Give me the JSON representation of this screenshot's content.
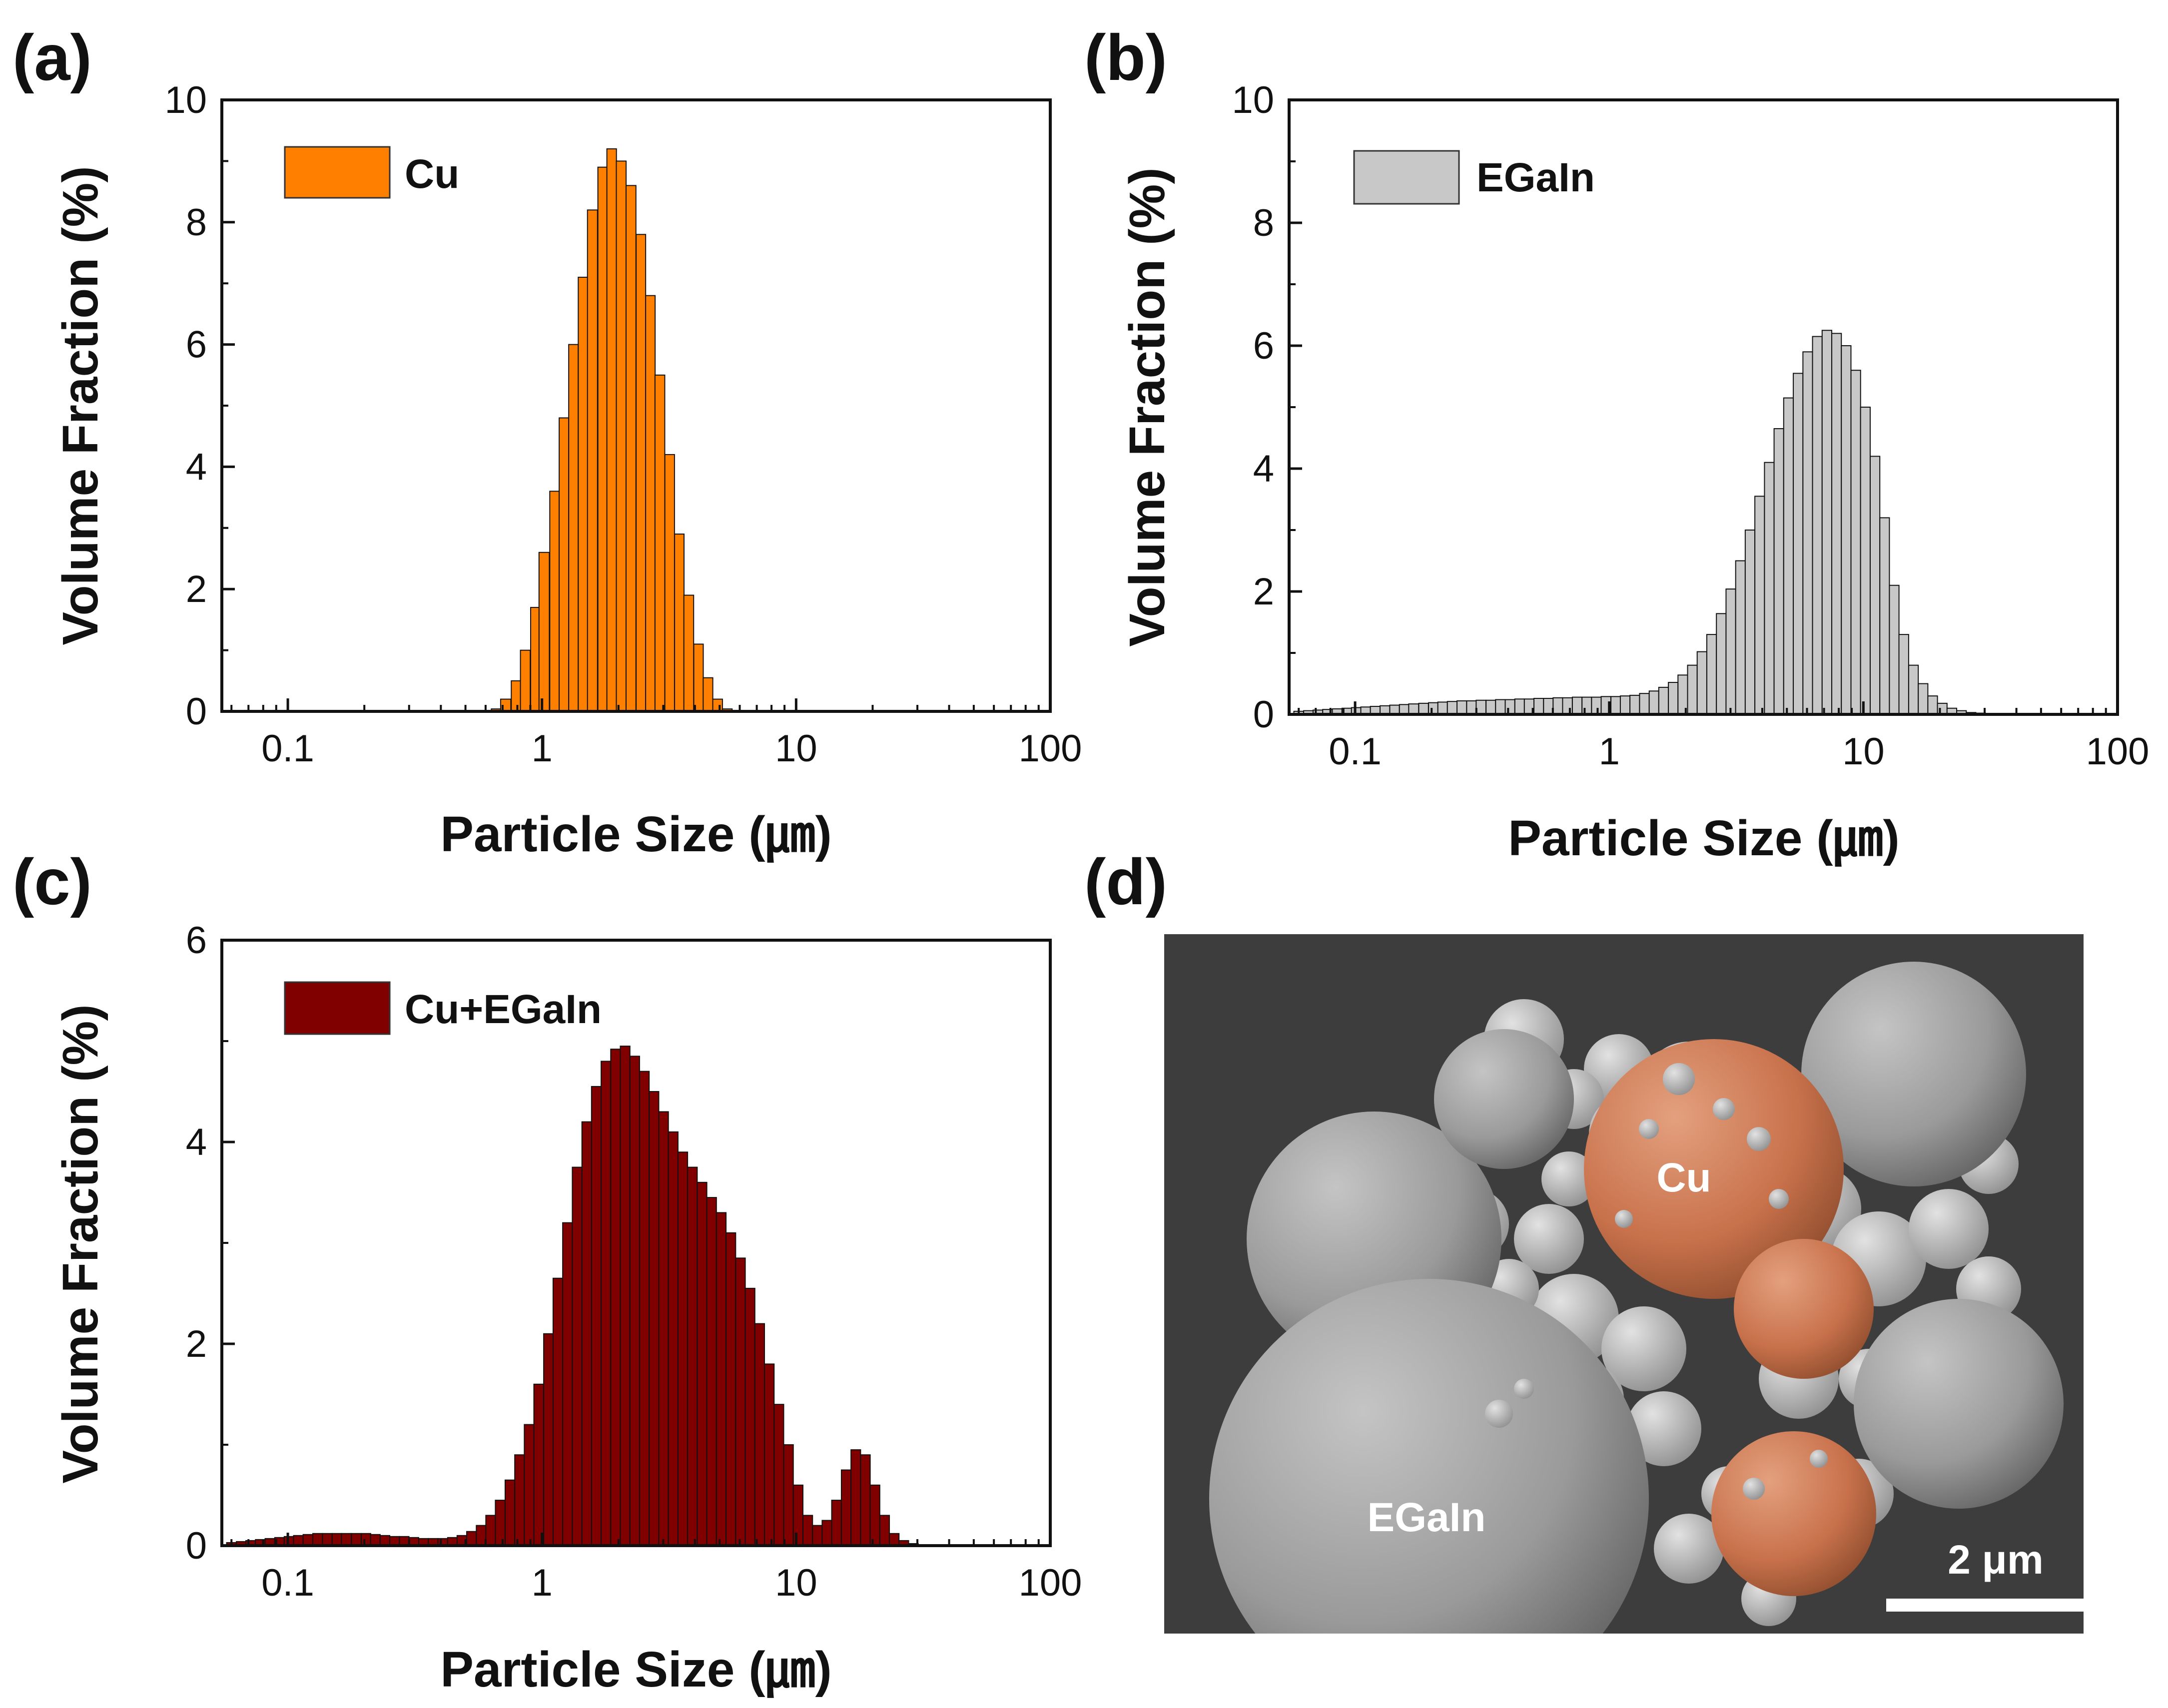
{
  "figure": {
    "background": "#ffffff",
    "x_scale": "log"
  },
  "chart_data": [
    {
      "id": "a",
      "panel_label": "(a)",
      "type": "bar",
      "legend": "Cu",
      "color": "#ff8000",
      "xlabel": "Particle Size (㎛)",
      "ylabel": "Volume Fraction (%)",
      "xlim": [
        0.055,
        100
      ],
      "ylim": [
        0,
        10
      ],
      "xticks": [
        {
          "v": 0.1,
          "t": "0.1"
        },
        {
          "v": 1,
          "t": "1"
        },
        {
          "v": 10,
          "t": "10"
        },
        {
          "v": 100,
          "t": "100"
        }
      ],
      "yticks": [
        {
          "v": 0,
          "t": "0"
        },
        {
          "v": 2,
          "t": "2"
        },
        {
          "v": 4,
          "t": "4"
        },
        {
          "v": 6,
          "t": "6"
        },
        {
          "v": 8,
          "t": "8"
        },
        {
          "v": 10,
          "t": "10"
        }
      ],
      "legend_position": "top-left",
      "x": [
        0.66,
        0.72,
        0.79,
        0.86,
        0.94,
        1.02,
        1.12,
        1.22,
        1.33,
        1.45,
        1.58,
        1.73,
        1.88,
        2.05,
        2.24,
        2.45,
        2.67,
        2.91,
        3.18,
        3.47,
        3.78,
        4.13,
        4.5,
        4.91,
        5.36
      ],
      "values": [
        0.04,
        0.2,
        0.5,
        1.0,
        1.7,
        2.6,
        3.6,
        4.8,
        6.0,
        7.1,
        8.2,
        8.9,
        9.2,
        9.0,
        8.6,
        7.8,
        6.8,
        5.5,
        4.2,
        2.9,
        1.9,
        1.1,
        0.55,
        0.2,
        0.04
      ]
    },
    {
      "id": "b",
      "panel_label": "(b)",
      "type": "bar",
      "legend": "EGaIn",
      "color": "#c8c8c8",
      "xlabel": "Particle Size (㎛)",
      "ylabel": "Volume Fraction (%)",
      "xlim": [
        0.055,
        100
      ],
      "ylim": [
        0,
        10
      ],
      "xticks": [
        {
          "v": 0.1,
          "t": "0.1"
        },
        {
          "v": 1,
          "t": "1"
        },
        {
          "v": 10,
          "t": "10"
        },
        {
          "v": 100,
          "t": "100"
        }
      ],
      "yticks": [
        {
          "v": 0,
          "t": "0"
        },
        {
          "v": 2,
          "t": "2"
        },
        {
          "v": 4,
          "t": "4"
        },
        {
          "v": 6,
          "t": "6"
        },
        {
          "v": 8,
          "t": "8"
        },
        {
          "v": 10,
          "t": "10"
        }
      ],
      "legend_position": "top-left",
      "x": [
        0.06,
        0.0655,
        0.0714,
        0.0779,
        0.085,
        0.0927,
        0.101,
        0.11,
        0.12,
        0.131,
        0.143,
        0.156,
        0.17,
        0.186,
        0.203,
        0.221,
        0.241,
        0.263,
        0.287,
        0.313,
        0.342,
        0.373,
        0.407,
        0.444,
        0.484,
        0.528,
        0.576,
        0.628,
        0.685,
        0.748,
        0.816,
        0.89,
        0.971,
        1.06,
        1.155,
        1.26,
        1.375,
        1.5,
        1.636,
        1.785,
        1.947,
        2.124,
        2.317,
        2.528,
        2.758,
        3.009,
        3.283,
        3.581,
        3.907,
        4.263,
        4.65,
        5.073,
        5.535,
        6.039,
        6.588,
        7.187,
        7.841,
        8.554,
        9.333,
        10.18,
        11.11,
        12.12,
        13.22,
        14.42,
        15.74,
        17.17,
        18.73,
        20.43,
        22.29,
        24.32,
        26.53,
        28.94,
        31.58
      ],
      "values": [
        0.05,
        0.06,
        0.07,
        0.08,
        0.09,
        0.1,
        0.11,
        0.12,
        0.13,
        0.14,
        0.15,
        0.16,
        0.17,
        0.18,
        0.19,
        0.2,
        0.21,
        0.22,
        0.22,
        0.23,
        0.23,
        0.24,
        0.24,
        0.25,
        0.25,
        0.26,
        0.26,
        0.27,
        0.27,
        0.28,
        0.28,
        0.28,
        0.29,
        0.29,
        0.3,
        0.31,
        0.34,
        0.38,
        0.44,
        0.52,
        0.64,
        0.8,
        1.02,
        1.3,
        1.64,
        2.04,
        2.5,
        3.0,
        3.55,
        4.1,
        4.65,
        5.15,
        5.55,
        5.9,
        6.15,
        6.25,
        6.2,
        6.0,
        5.6,
        5.0,
        4.2,
        3.2,
        2.1,
        1.3,
        0.8,
        0.5,
        0.3,
        0.18,
        0.1,
        0.06,
        0.03,
        0.02,
        0.01
      ]
    },
    {
      "id": "c",
      "panel_label": "(c)",
      "type": "bar",
      "legend": "Cu+EGaIn",
      "color": "#800000",
      "xlabel": "Particle Size (㎛)",
      "ylabel": "Volume Fraction (%)",
      "xlim": [
        0.055,
        100
      ],
      "ylim": [
        0,
        6
      ],
      "xticks": [
        {
          "v": 0.1,
          "t": "0.1"
        },
        {
          "v": 1,
          "t": "1"
        },
        {
          "v": 10,
          "t": "10"
        },
        {
          "v": 100,
          "t": "100"
        }
      ],
      "yticks": [
        {
          "v": 0,
          "t": "0"
        },
        {
          "v": 2,
          "t": "2"
        },
        {
          "v": 4,
          "t": "4"
        },
        {
          "v": 6,
          "t": "6"
        }
      ],
      "legend_position": "top-left",
      "x": [
        0.06,
        0.0655,
        0.0714,
        0.0779,
        0.085,
        0.0927,
        0.101,
        0.11,
        0.12,
        0.131,
        0.143,
        0.156,
        0.17,
        0.186,
        0.203,
        0.221,
        0.241,
        0.263,
        0.287,
        0.313,
        0.342,
        0.373,
        0.407,
        0.444,
        0.484,
        0.528,
        0.576,
        0.628,
        0.685,
        0.748,
        0.816,
        0.89,
        0.971,
        1.06,
        1.155,
        1.26,
        1.375,
        1.5,
        1.636,
        1.785,
        1.947,
        2.124,
        2.317,
        2.528,
        2.758,
        3.009,
        3.283,
        3.581,
        3.907,
        4.263,
        4.65,
        5.073,
        5.535,
        6.039,
        6.588,
        7.187,
        7.841,
        8.554,
        9.333,
        10.18,
        11.11,
        12.12,
        13.22,
        14.42,
        15.74,
        17.17,
        18.73,
        20.43,
        22.29,
        24.32,
        26.53,
        28.94
      ],
      "values": [
        0.03,
        0.04,
        0.05,
        0.06,
        0.07,
        0.08,
        0.09,
        0.1,
        0.11,
        0.12,
        0.12,
        0.12,
        0.12,
        0.12,
        0.12,
        0.11,
        0.1,
        0.09,
        0.09,
        0.08,
        0.07,
        0.07,
        0.07,
        0.08,
        0.1,
        0.14,
        0.2,
        0.3,
        0.45,
        0.65,
        0.9,
        1.2,
        1.6,
        2.1,
        2.65,
        3.2,
        3.75,
        4.2,
        4.55,
        4.8,
        4.92,
        4.95,
        4.85,
        4.7,
        4.5,
        4.3,
        4.1,
        3.9,
        3.75,
        3.6,
        3.45,
        3.3,
        3.1,
        2.85,
        2.55,
        2.2,
        1.8,
        1.4,
        1.0,
        0.6,
        0.3,
        0.2,
        0.25,
        0.45,
        0.75,
        0.95,
        0.9,
        0.6,
        0.3,
        0.12,
        0.05,
        0.02
      ]
    }
  ],
  "sem_panel": {
    "panel_label": "(d)",
    "cu_label": "Cu",
    "egain_label": "EGaIn",
    "scale_bar": "2 μm",
    "cu_color": "#c8714b",
    "egain_color": "#9a9a9a",
    "background_color": "#3d3d3d"
  }
}
